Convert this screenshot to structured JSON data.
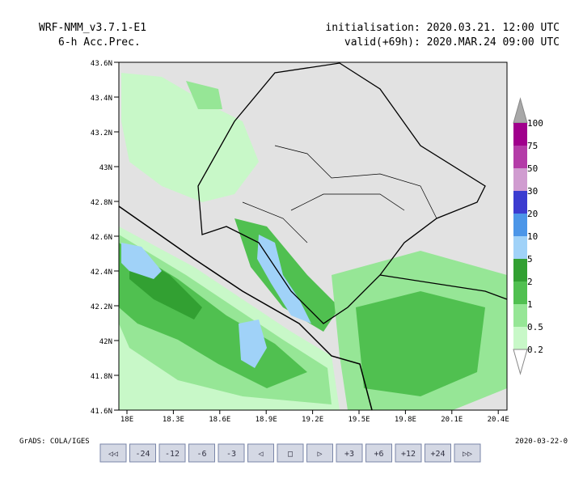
{
  "header": {
    "model": "WRF-NMM_v3.7.1-E1",
    "field": "6-h Acc.Prec.",
    "init": "initialisation: 2020.03.21.  12:00 UTC",
    "valid": "valid(+69h): 2020.MAR.24 09:00 UTC"
  },
  "map": {
    "lat_labels": [
      "43.6N",
      "43.4N",
      "43.2N",
      "43N",
      "42.8N",
      "42.6N",
      "42.4N",
      "42.2N",
      "42N",
      "41.8N",
      "41.6N"
    ],
    "lon_labels": [
      "18E",
      "18.3E",
      "18.6E",
      "18.9E",
      "19.2E",
      "19.5E",
      "19.8E",
      "20.1E",
      "20.4E"
    ]
  },
  "colorbar": {
    "labels": [
      "100",
      "75",
      "50",
      "30",
      "20",
      "10",
      "5",
      "2",
      "1",
      "0.5",
      "0.2"
    ],
    "colors": [
      "#a0008c",
      "#b43ca8",
      "#d09cd0",
      "#3c3cd0",
      "#4c96e8",
      "#a0d2f8",
      "#32a032",
      "#50c050",
      "#96e696",
      "#c8f8c8"
    ]
  },
  "footer": {
    "left": "GrADS: COLA/IGES",
    "right": "2020-03-22-0"
  },
  "buttons": [
    "◁◁",
    "-24",
    "-12",
    "-6",
    "-3",
    "◁",
    "□",
    "▷",
    "+3",
    "+6",
    "+12",
    "+24",
    "▷▷"
  ]
}
